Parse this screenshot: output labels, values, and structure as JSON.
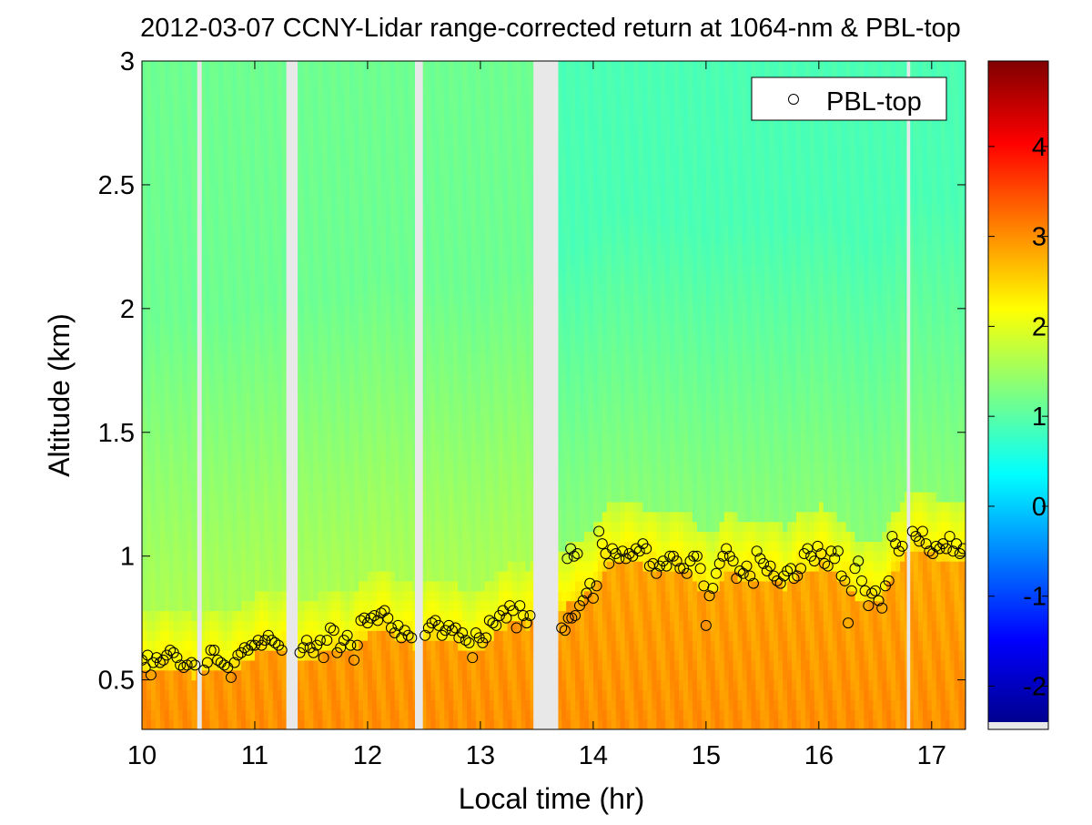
{
  "chart_data": {
    "type": "heatmap",
    "title": "2012-03-07 CCNY-Lidar range-corrected return at 1064-nm & PBL-top",
    "xlabel": "Local time (hr)",
    "ylabel": "Altitude (km)",
    "xlim": [
      10.0,
      17.3
    ],
    "ylim": [
      0.3,
      3.0
    ],
    "x_ticks": [
      10,
      11,
      12,
      13,
      14,
      15,
      16,
      17
    ],
    "x_tick_labels": [
      "10",
      "11",
      "12",
      "13",
      "14",
      "15",
      "16",
      "17"
    ],
    "y_ticks": [
      0.5,
      1.0,
      1.5,
      2.0,
      2.5,
      3.0
    ],
    "y_tick_labels": [
      "0.5",
      "1",
      "1.5",
      "2",
      "2.5",
      "3"
    ],
    "colorbar": {
      "range": [
        -2.4,
        4.95
      ],
      "ticks": [
        -2,
        -1,
        0,
        1,
        2,
        3,
        4
      ],
      "tick_labels": [
        "-2",
        "-1",
        "0",
        "1",
        "2",
        "3",
        "4"
      ]
    },
    "data_gaps_hr": [
      [
        10.49,
        10.53
      ],
      [
        11.28,
        11.38
      ],
      [
        12.42,
        12.49
      ],
      [
        13.47,
        13.69
      ],
      [
        16.78,
        16.81
      ]
    ],
    "field_description": {
      "surface_value": 3.0,
      "pbl_band_value": 2.4,
      "free_troposphere_value_low": 1.6,
      "free_troposphere_value_high": 1.1
    },
    "legend": {
      "position": "top-right",
      "entries": [
        "PBL-top"
      ]
    },
    "series": [
      {
        "name": "PBL-top",
        "marker": "circle",
        "points": [
          [
            10.0,
            0.58
          ],
          [
            10.03,
            0.55
          ],
          [
            10.05,
            0.6
          ],
          [
            10.08,
            0.52
          ],
          [
            10.1,
            0.57
          ],
          [
            10.13,
            0.59
          ],
          [
            10.16,
            0.57
          ],
          [
            10.19,
            0.58
          ],
          [
            10.22,
            0.6
          ],
          [
            10.25,
            0.62
          ],
          [
            10.28,
            0.61
          ],
          [
            10.31,
            0.59
          ],
          [
            10.34,
            0.56
          ],
          [
            10.37,
            0.55
          ],
          [
            10.4,
            0.56
          ],
          [
            10.44,
            0.57
          ],
          [
            10.47,
            0.56
          ],
          [
            10.55,
            0.54
          ],
          [
            10.58,
            0.57
          ],
          [
            10.61,
            0.62
          ],
          [
            10.64,
            0.62
          ],
          [
            10.67,
            0.58
          ],
          [
            10.7,
            0.57
          ],
          [
            10.73,
            0.56
          ],
          [
            10.76,
            0.55
          ],
          [
            10.79,
            0.51
          ],
          [
            10.82,
            0.57
          ],
          [
            10.85,
            0.6
          ],
          [
            10.88,
            0.61
          ],
          [
            10.91,
            0.63
          ],
          [
            10.94,
            0.62
          ],
          [
            10.97,
            0.64
          ],
          [
            11.0,
            0.64
          ],
          [
            11.03,
            0.66
          ],
          [
            11.06,
            0.64
          ],
          [
            11.09,
            0.66
          ],
          [
            11.12,
            0.68
          ],
          [
            11.15,
            0.66
          ],
          [
            11.18,
            0.65
          ],
          [
            11.21,
            0.64
          ],
          [
            11.24,
            0.62
          ],
          [
            11.4,
            0.61
          ],
          [
            11.43,
            0.63
          ],
          [
            11.46,
            0.66
          ],
          [
            11.49,
            0.63
          ],
          [
            11.52,
            0.61
          ],
          [
            11.55,
            0.64
          ],
          [
            11.58,
            0.66
          ],
          [
            11.61,
            0.59
          ],
          [
            11.64,
            0.66
          ],
          [
            11.67,
            0.71
          ],
          [
            11.7,
            0.7
          ],
          [
            11.73,
            0.61
          ],
          [
            11.76,
            0.63
          ],
          [
            11.79,
            0.66
          ],
          [
            11.82,
            0.68
          ],
          [
            11.85,
            0.64
          ],
          [
            11.88,
            0.58
          ],
          [
            11.91,
            0.64
          ],
          [
            11.94,
            0.74
          ],
          [
            11.97,
            0.75
          ],
          [
            12.0,
            0.73
          ],
          [
            12.03,
            0.75
          ],
          [
            12.06,
            0.76
          ],
          [
            12.09,
            0.74
          ],
          [
            12.12,
            0.77
          ],
          [
            12.15,
            0.78
          ],
          [
            12.18,
            0.75
          ],
          [
            12.21,
            0.71
          ],
          [
            12.24,
            0.69
          ],
          [
            12.27,
            0.72
          ],
          [
            12.3,
            0.67
          ],
          [
            12.33,
            0.7
          ],
          [
            12.36,
            0.68
          ],
          [
            12.39,
            0.67
          ],
          [
            12.51,
            0.68
          ],
          [
            12.54,
            0.71
          ],
          [
            12.57,
            0.73
          ],
          [
            12.6,
            0.74
          ],
          [
            12.63,
            0.72
          ],
          [
            12.66,
            0.68
          ],
          [
            12.69,
            0.7
          ],
          [
            12.72,
            0.72
          ],
          [
            12.75,
            0.7
          ],
          [
            12.78,
            0.71
          ],
          [
            12.81,
            0.67
          ],
          [
            12.84,
            0.69
          ],
          [
            12.87,
            0.66
          ],
          [
            12.9,
            0.65
          ],
          [
            12.93,
            0.59
          ],
          [
            12.96,
            0.69
          ],
          [
            12.99,
            0.67
          ],
          [
            13.02,
            0.65
          ],
          [
            13.05,
            0.67
          ],
          [
            13.08,
            0.74
          ],
          [
            13.11,
            0.73
          ],
          [
            13.14,
            0.72
          ],
          [
            13.17,
            0.76
          ],
          [
            13.2,
            0.78
          ],
          [
            13.23,
            0.75
          ],
          [
            13.26,
            0.8
          ],
          [
            13.29,
            0.78
          ],
          [
            13.32,
            0.71
          ],
          [
            13.35,
            0.8
          ],
          [
            13.38,
            0.76
          ],
          [
            13.41,
            0.73
          ],
          [
            13.44,
            0.76
          ],
          [
            13.72,
            0.71
          ],
          [
            13.75,
            0.7
          ],
          [
            13.78,
            0.75
          ],
          [
            13.81,
            0.75
          ],
          [
            13.84,
            0.76
          ],
          [
            13.88,
            0.8
          ],
          [
            13.91,
            0.82
          ],
          [
            13.94,
            0.85
          ],
          [
            13.97,
            0.89
          ],
          [
            14.0,
            0.83
          ],
          [
            14.03,
            0.88
          ],
          [
            13.77,
            0.99
          ],
          [
            13.8,
            1.03
          ],
          [
            13.83,
            1.0
          ],
          [
            13.86,
            1.01
          ],
          [
            14.05,
            1.1
          ],
          [
            14.08,
            1.05
          ],
          [
            14.11,
            1.01
          ],
          [
            14.14,
            0.97
          ],
          [
            14.17,
            1.03
          ],
          [
            14.2,
            1.01
          ],
          [
            14.23,
            0.99
          ],
          [
            14.26,
            1.02
          ],
          [
            14.29,
            0.99
          ],
          [
            14.32,
            1.01
          ],
          [
            14.35,
            1.0
          ],
          [
            14.38,
            1.03
          ],
          [
            14.41,
            1.02
          ],
          [
            14.44,
            1.05
          ],
          [
            14.47,
            1.03
          ],
          [
            14.5,
            0.96
          ],
          [
            14.53,
            0.97
          ],
          [
            14.56,
            0.93
          ],
          [
            14.59,
            0.96
          ],
          [
            14.62,
            0.98
          ],
          [
            14.65,
            0.96
          ],
          [
            14.68,
            1.0
          ],
          [
            14.71,
            1.0
          ],
          [
            14.74,
            0.98
          ],
          [
            14.77,
            0.95
          ],
          [
            14.8,
            0.95
          ],
          [
            14.83,
            0.93
          ],
          [
            14.86,
            0.98
          ],
          [
            14.89,
            1.0
          ],
          [
            14.92,
            1.0
          ],
          [
            14.95,
            0.95
          ],
          [
            14.98,
            0.88
          ],
          [
            15.0,
            0.72
          ],
          [
            15.03,
            0.84
          ],
          [
            15.06,
            0.87
          ],
          [
            15.09,
            0.93
          ],
          [
            15.12,
            0.97
          ],
          [
            15.15,
            1.0
          ],
          [
            15.18,
            1.03
          ],
          [
            15.21,
            1.0
          ],
          [
            15.24,
            0.98
          ],
          [
            15.27,
            0.91
          ],
          [
            15.3,
            0.94
          ],
          [
            15.33,
            0.93
          ],
          [
            15.36,
            0.96
          ],
          [
            15.39,
            0.92
          ],
          [
            15.42,
            0.89
          ],
          [
            15.45,
            1.02
          ],
          [
            15.48,
            0.99
          ],
          [
            15.51,
            0.97
          ],
          [
            15.54,
            0.94
          ],
          [
            15.57,
            0.96
          ],
          [
            15.6,
            0.92
          ],
          [
            15.63,
            0.9
          ],
          [
            15.66,
            0.89
          ],
          [
            15.69,
            0.92
          ],
          [
            15.72,
            0.94
          ],
          [
            15.75,
            0.95
          ],
          [
            15.78,
            0.91
          ],
          [
            15.81,
            0.92
          ],
          [
            15.84,
            0.95
          ],
          [
            15.87,
            1.01
          ],
          [
            15.9,
            1.03
          ],
          [
            15.93,
            1.0
          ],
          [
            15.96,
            0.98
          ],
          [
            15.99,
            1.04
          ],
          [
            16.02,
            1.01
          ],
          [
            16.05,
            0.97
          ],
          [
            16.08,
            0.96
          ],
          [
            16.11,
            1.02
          ],
          [
            16.14,
            0.99
          ],
          [
            16.17,
            1.02
          ],
          [
            16.2,
            0.92
          ],
          [
            16.23,
            0.9
          ],
          [
            16.26,
            0.73
          ],
          [
            16.29,
            0.86
          ],
          [
            16.32,
            0.95
          ],
          [
            16.35,
            0.98
          ],
          [
            16.38,
            0.9
          ],
          [
            16.41,
            0.86
          ],
          [
            16.44,
            0.8
          ],
          [
            16.47,
            0.85
          ],
          [
            16.5,
            0.86
          ],
          [
            16.53,
            0.82
          ],
          [
            16.56,
            0.79
          ],
          [
            16.59,
            0.88
          ],
          [
            16.62,
            0.9
          ],
          [
            16.65,
            1.08
          ],
          [
            16.68,
            1.05
          ],
          [
            16.71,
            1.02
          ],
          [
            16.74,
            1.04
          ],
          [
            16.83,
            1.1
          ],
          [
            16.86,
            1.08
          ],
          [
            16.89,
            1.06
          ],
          [
            16.92,
            1.1
          ],
          [
            16.95,
            1.05
          ],
          [
            16.98,
            1.02
          ],
          [
            17.01,
            1.01
          ],
          [
            17.04,
            1.04
          ],
          [
            17.07,
            1.03
          ],
          [
            17.1,
            1.05
          ],
          [
            17.13,
            1.03
          ],
          [
            17.16,
            1.08
          ],
          [
            17.19,
            1.02
          ],
          [
            17.22,
            1.05
          ],
          [
            17.25,
            1.01
          ],
          [
            17.28,
            1.03
          ]
        ]
      }
    ]
  }
}
